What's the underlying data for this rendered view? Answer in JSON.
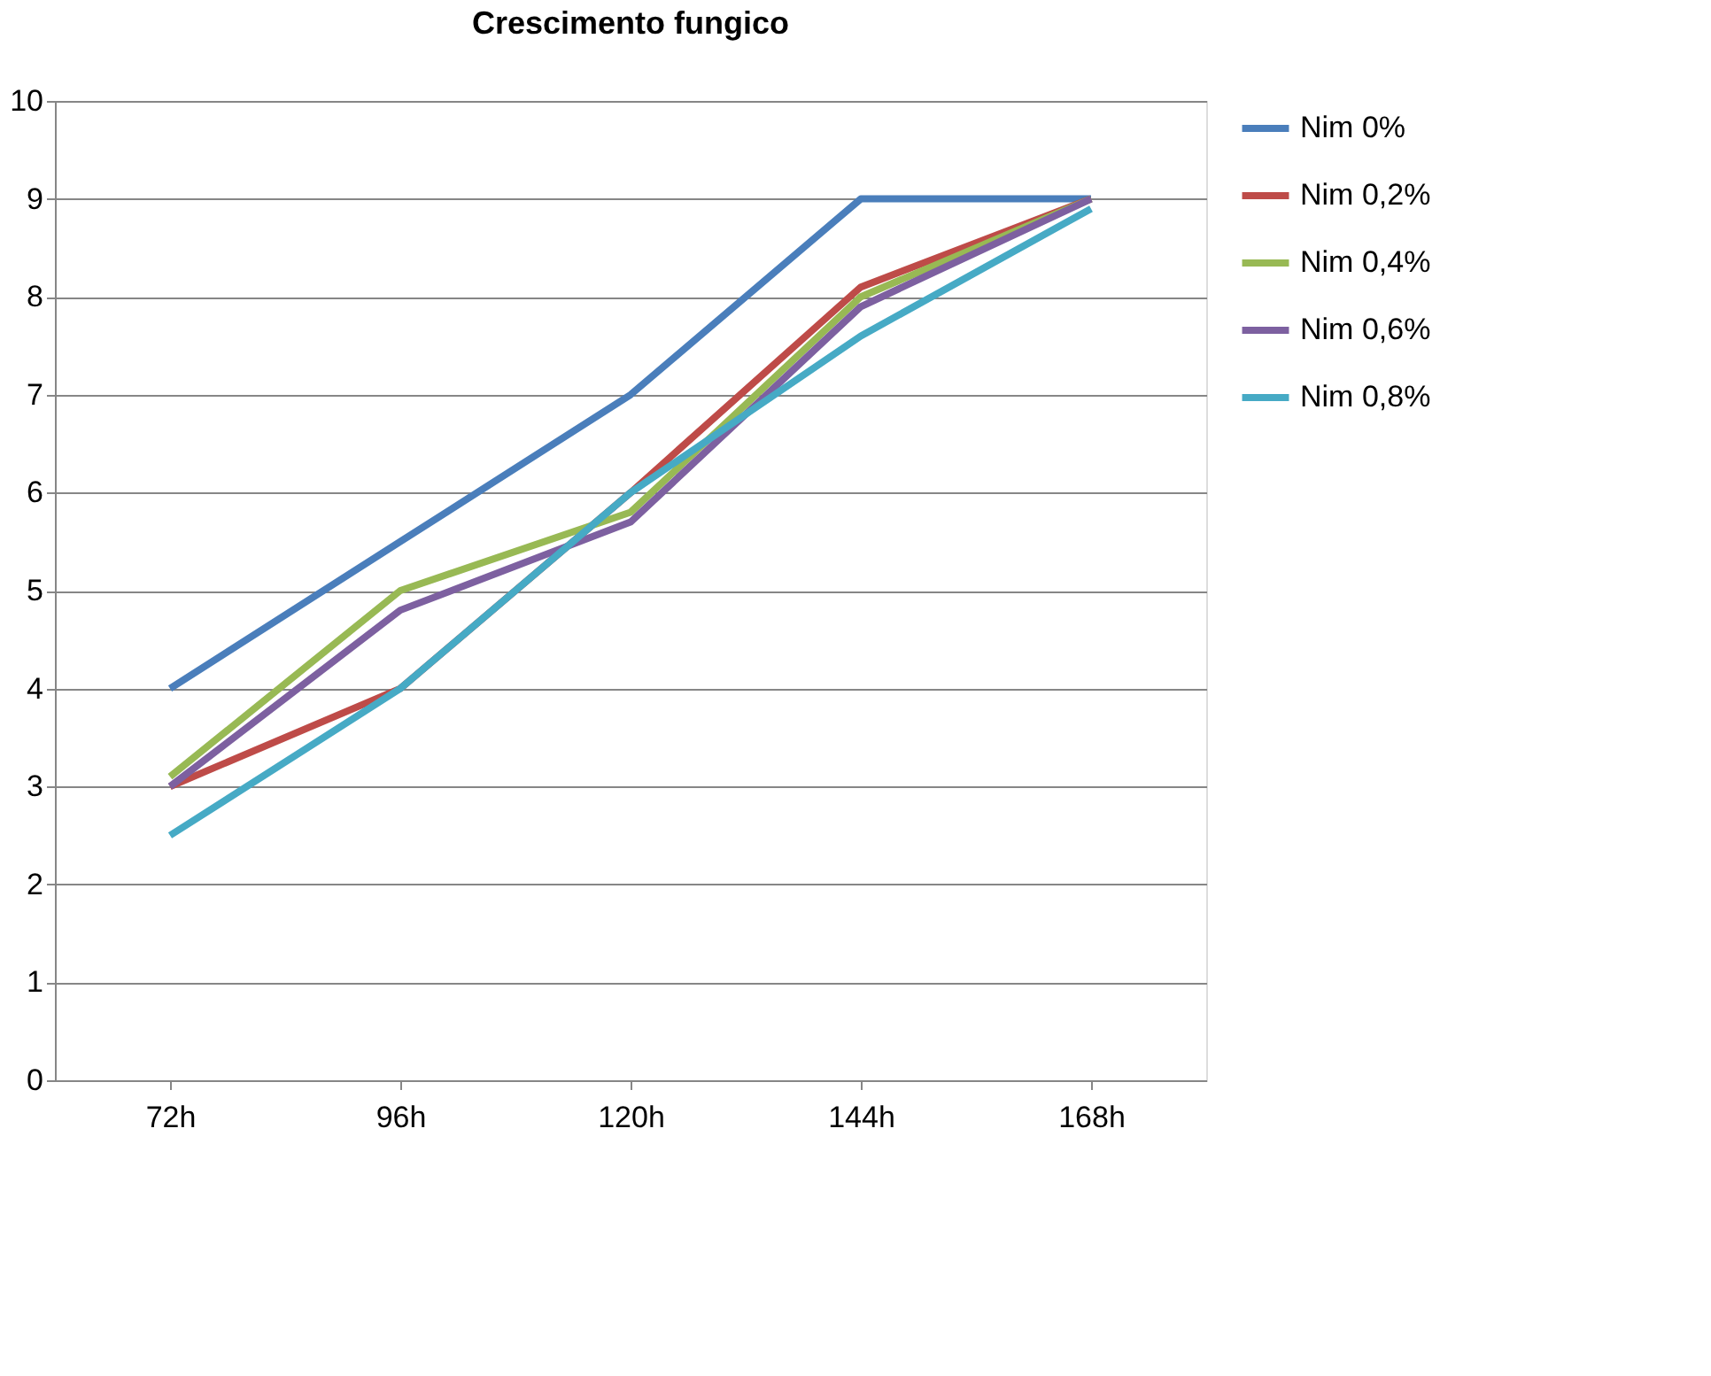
{
  "chart_data": {
    "type": "line",
    "title": "Crescimento  fungico",
    "categories": [
      "72h",
      "96h",
      "120h",
      "144h",
      "168h"
    ],
    "ylim": [
      0,
      10
    ],
    "yticks": [
      0,
      1,
      2,
      3,
      4,
      5,
      6,
      7,
      8,
      9,
      10
    ],
    "grid": "y",
    "legend": "right",
    "marker": "none",
    "line_style": "solid",
    "series": [
      {
        "name": "Nim 0%",
        "color": "#4a7ebb",
        "values": [
          4,
          5.5,
          7,
          9,
          9
        ]
      },
      {
        "name": "Nim 0,2%",
        "color": "#be4b48",
        "values": [
          3,
          4,
          6,
          8.1,
          9
        ]
      },
      {
        "name": "Nim 0,4%",
        "color": "#98b954",
        "values": [
          3.1,
          5,
          5.8,
          8,
          9
        ]
      },
      {
        "name": "Nim 0,6%",
        "color": "#7d60a0",
        "values": [
          3,
          4.8,
          5.7,
          7.9,
          9
        ]
      },
      {
        "name": "Nim 0,8%",
        "color": "#46aac5",
        "values": [
          2.5,
          4,
          6,
          7.6,
          8.9
        ]
      }
    ]
  }
}
